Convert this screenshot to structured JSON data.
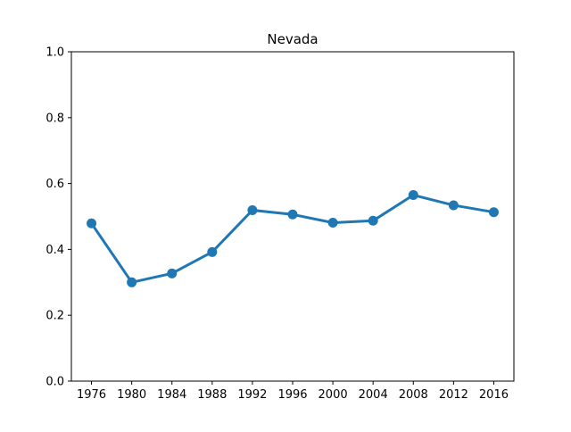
{
  "chart_data": {
    "type": "line",
    "title": "Nevada",
    "xlabel": "",
    "ylabel": "",
    "categories": [
      "1976",
      "1980",
      "1984",
      "1988",
      "1992",
      "1996",
      "2000",
      "2004",
      "2008",
      "2012",
      "2016"
    ],
    "series": [
      {
        "values": [
          0.479,
          0.3,
          0.327,
          0.392,
          0.519,
          0.506,
          0.481,
          0.487,
          0.565,
          0.534,
          0.513
        ]
      }
    ],
    "ylim": [
      0,
      1.0
    ],
    "yticks": [
      "0.0",
      "0.2",
      "0.4",
      "0.6",
      "0.8",
      "1.0"
    ],
    "grid": false,
    "colors": {
      "series": "#1f77b4",
      "axes": "#000000"
    }
  }
}
